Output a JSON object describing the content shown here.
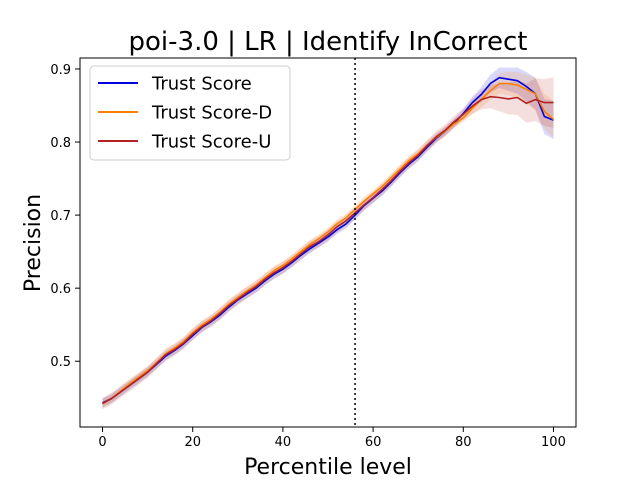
{
  "chart_data": {
    "type": "line",
    "title": "poi-3.0 | LR | Identify InCorrect",
    "xlabel": "Percentile level",
    "ylabel": "Precision",
    "xlim": [
      -5,
      105
    ],
    "ylim": [
      0.41,
      0.915
    ],
    "xticks": [
      0,
      20,
      40,
      60,
      80,
      100
    ],
    "yticks": [
      0.5,
      0.6,
      0.7,
      0.8,
      0.9
    ],
    "xtick_labels": [
      "0",
      "20",
      "40",
      "60",
      "80",
      "100"
    ],
    "ytick_labels": [
      "0.5",
      "0.6",
      "0.7",
      "0.8",
      "0.9"
    ],
    "vline_x": 56,
    "legend_position": "top-left",
    "grid": false,
    "x": [
      0,
      2,
      4,
      6,
      8,
      10,
      12,
      14,
      16,
      18,
      20,
      22,
      24,
      26,
      28,
      30,
      32,
      34,
      36,
      38,
      40,
      42,
      44,
      46,
      48,
      50,
      52,
      54,
      56,
      58,
      60,
      62,
      64,
      66,
      68,
      70,
      72,
      74,
      76,
      78,
      80,
      82,
      84,
      86,
      88,
      90,
      92,
      94,
      96,
      98,
      100
    ],
    "series": [
      {
        "name": "Trust Score",
        "color": "#0000e0",
        "values": [
          0.443,
          0.449,
          0.458,
          0.467,
          0.476,
          0.485,
          0.496,
          0.507,
          0.515,
          0.524,
          0.535,
          0.546,
          0.554,
          0.563,
          0.574,
          0.584,
          0.592,
          0.6,
          0.61,
          0.619,
          0.626,
          0.635,
          0.645,
          0.654,
          0.662,
          0.67,
          0.68,
          0.688,
          0.7,
          0.713,
          0.723,
          0.733,
          0.745,
          0.758,
          0.77,
          0.78,
          0.793,
          0.805,
          0.815,
          0.826,
          0.839,
          0.854,
          0.865,
          0.88,
          0.888,
          0.886,
          0.884,
          0.876,
          0.866,
          0.835,
          0.83
        ],
        "band": 0.006
      },
      {
        "name": "Trust Score-D",
        "color": "#ff8000",
        "values": [
          0.442,
          0.449,
          0.459,
          0.469,
          0.478,
          0.487,
          0.498,
          0.51,
          0.518,
          0.527,
          0.539,
          0.549,
          0.557,
          0.567,
          0.578,
          0.587,
          0.596,
          0.604,
          0.614,
          0.624,
          0.631,
          0.64,
          0.65,
          0.66,
          0.668,
          0.677,
          0.688,
          0.696,
          0.708,
          0.719,
          0.729,
          0.739,
          0.751,
          0.763,
          0.775,
          0.784,
          0.796,
          0.806,
          0.815,
          0.825,
          0.833,
          0.846,
          0.858,
          0.87,
          0.88,
          0.88,
          0.878,
          0.872,
          0.866,
          0.842,
          0.831
        ],
        "band": 0.006
      },
      {
        "name": "Trust Score-U",
        "color": "#b22222",
        "values": [
          0.442,
          0.449,
          0.458,
          0.467,
          0.476,
          0.485,
          0.497,
          0.509,
          0.516,
          0.525,
          0.537,
          0.547,
          0.555,
          0.565,
          0.576,
          0.585,
          0.594,
          0.602,
          0.612,
          0.621,
          0.628,
          0.637,
          0.647,
          0.657,
          0.664,
          0.673,
          0.684,
          0.692,
          0.703,
          0.714,
          0.724,
          0.735,
          0.747,
          0.76,
          0.772,
          0.782,
          0.795,
          0.807,
          0.816,
          0.828,
          0.838,
          0.849,
          0.858,
          0.862,
          0.861,
          0.859,
          0.861,
          0.853,
          0.858,
          0.854,
          0.854
        ],
        "band": 0.008
      }
    ]
  }
}
